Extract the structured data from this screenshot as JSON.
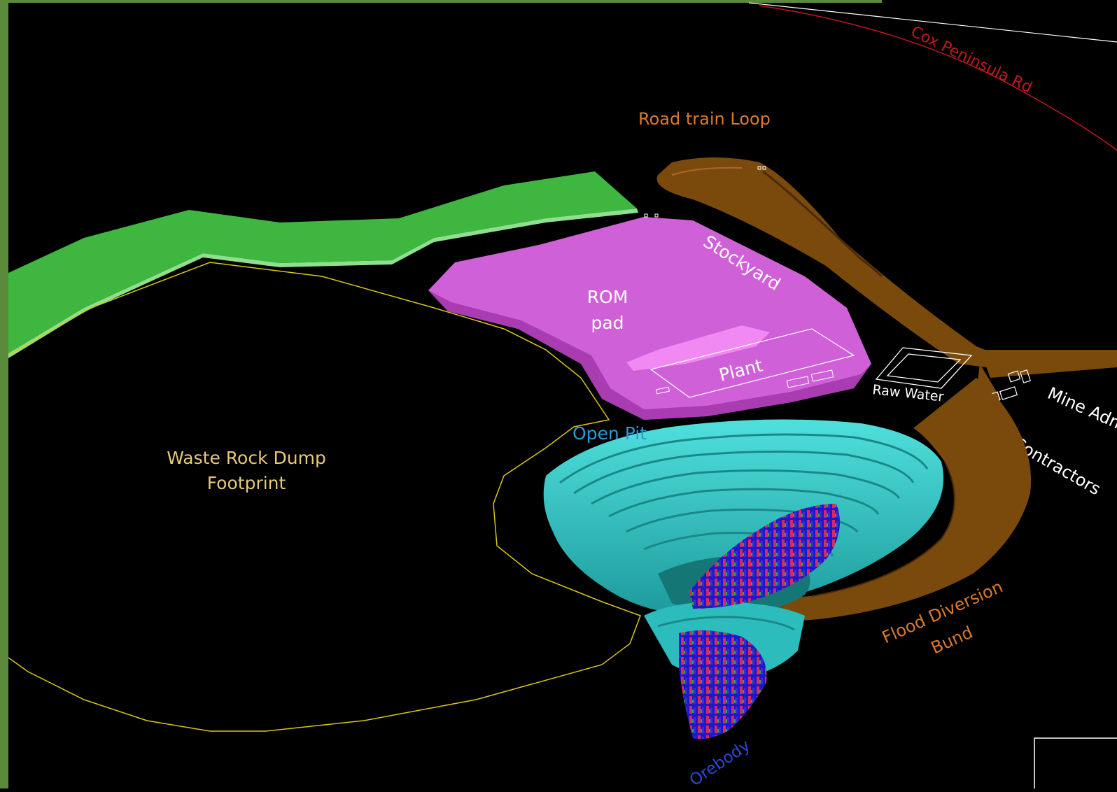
{
  "frame": {
    "border_color": "#5a8a3a",
    "background": "#000000"
  },
  "labels": {
    "cox_peninsula_rd": "Cox Peninsula Rd",
    "road_train_loop": "Road train Loop",
    "stockyard": "Stockyard",
    "rom_pad_line1": "ROM",
    "rom_pad_line2": "pad",
    "plant": "Plant",
    "raw_water": "Raw Water",
    "mine_admin": "Mine Admin",
    "contractors": "Contractors",
    "open_pit": "Open Pit",
    "waste_rock_line1": "Waste Rock Dump",
    "waste_rock_line2": "Footprint",
    "flood_line1": "Flood Diversion",
    "flood_line2": "Bund",
    "orebody": "Orebody"
  },
  "colors": {
    "road": "#c0181c",
    "road_train_loop": "#7a4a0c",
    "road_train_label": "#d97a2c",
    "bund": "#7a4a0c",
    "green_strip": "#3fb63f",
    "rom_pad": "#d060d8",
    "rom_pad_light": "#f08af2",
    "open_pit": "#2cbcbc",
    "open_pit_label": "#2a9ad8",
    "waste_outline": "#d8c818",
    "waste_label": "#e6c87a",
    "orebody_blue": "#2018c8",
    "orebody_red": "#d82860",
    "orebody_label": "#2a48d8",
    "flood_label": "#d97a2c",
    "white_label": "#ffffff"
  }
}
